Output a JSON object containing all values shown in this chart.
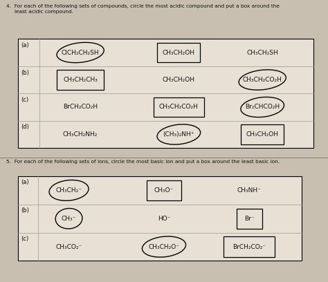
{
  "bg_color": "#c8bfb0",
  "table_bg": "#e8e0d5",
  "line_color": "#888880",
  "text_color": "#111111",
  "title4": "4.  For each of the following sets of compounds, circle the most acidic compound and put a box around the\n     least acidic compound.",
  "title5": "5.  For each of the following sets of ions, circle the most basic ion and put a box around the least basic ion.",
  "q4_rows": [
    {
      "label": "(a)",
      "compounds": [
        "ClCH₂CH₂SH",
        "CH₃CH₂OH",
        "CH₃CH₂SH"
      ],
      "circled": [
        0
      ],
      "boxed": [
        1
      ]
    },
    {
      "label": "(b)",
      "compounds": [
        "CH₃CH₂CH₃",
        "CH₃CH₂OH",
        "CH₃CH₂CO₂H"
      ],
      "circled": [
        2
      ],
      "boxed": [
        0
      ]
    },
    {
      "label": "(c)",
      "compounds": [
        "BrCH₂CO₂H",
        "CH₃CH₂CO₂H",
        "Br₂CHCO₂H"
      ],
      "circled": [
        2
      ],
      "boxed": [
        1
      ]
    },
    {
      "label": "(d)",
      "compounds": [
        "CH₃CH₂NH₂",
        "(CH₃)₂NH⁺",
        "CH₃CH₂OH"
      ],
      "circled": [
        1
      ],
      "boxed": [
        2
      ]
    }
  ],
  "q5_rows": [
    {
      "label": "(a)",
      "compounds": [
        "CH₃CH₂⁻",
        "CH₃O⁻",
        "CH₃NH⁻"
      ],
      "circled": [
        0
      ],
      "boxed": [
        1
      ]
    },
    {
      "label": "(b)",
      "compounds": [
        "CH₃⁻",
        "HO⁻",
        "Br⁻"
      ],
      "circled": [
        0
      ],
      "boxed": [
        2
      ]
    },
    {
      "label": "(c)",
      "compounds": [
        "CH₃CO₂⁻",
        "CH₃CH₂O⁻",
        "BrCH₂CO₂⁻"
      ],
      "circled": [
        1
      ],
      "boxed": [
        2
      ]
    }
  ],
  "figsize": [
    4.74,
    4.08
  ],
  "dpi": 100
}
